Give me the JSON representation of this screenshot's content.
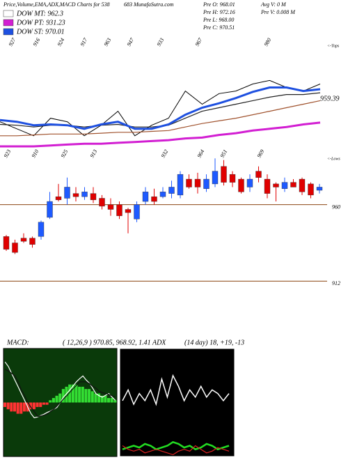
{
  "header": {
    "title": "Price,Volume,EMA,ADX,MACD Charts for 538",
    "site": "683 MunafaSutra.com",
    "info": [
      [
        "Pre O: 968.01",
        "Avg V: 0 M"
      ],
      [
        "Pre H: 972.16",
        "Pre V: 0.008 M"
      ],
      [
        "Pre L: 968.00"
      ],
      [
        "Pre C: 970.51"
      ]
    ]
  },
  "chart_data": [
    {
      "type": "line",
      "categories": [
        null,
        null,
        null,
        null,
        null,
        null,
        null,
        null,
        null,
        null,
        null,
        null,
        null,
        null,
        null,
        null,
        null,
        null,
        null,
        null
      ],
      "ylim": [
        901,
        1024
      ],
      "top_marker": "<-Tops",
      "top_labels": [
        "927",
        "916",
        "924",
        "917",
        "963",
        "947",
        "933",
        "967",
        "980"
      ],
      "low_marker": "<-Lows",
      "low_labels": [
        "923",
        "910",
        "925",
        "913",
        "932",
        "964",
        "951",
        "969"
      ],
      "annotation": "959.39",
      "series": [
        {
          "color": "#000000",
          "values": [
            933,
            925,
            917,
            937,
            933,
            917,
            929,
            945,
            917,
            929,
            937,
            968,
            953,
            965,
            968,
            976,
            980,
            972,
            968,
            976
          ]
        },
        {
          "color": "#a0522d",
          "values": [
            917,
            917,
            918,
            919,
            919,
            919,
            920,
            921,
            921,
            922,
            923,
            927,
            931,
            934,
            937,
            941,
            945,
            949,
            953,
            957
          ]
        },
        {
          "name": "DOW MT: 962.3",
          "color": "#222222",
          "values": [
            930,
            929,
            927,
            929,
            929,
            927,
            929,
            930,
            927,
            927,
            929,
            937,
            945,
            949,
            953,
            957,
            961,
            964,
            964,
            966
          ]
        },
        {
          "name": "DOW PT: 931.23",
          "color": "#d21ed2",
          "values": [
            905,
            905,
            905,
            906,
            907,
            908,
            908,
            909,
            910,
            911,
            912,
            914,
            915,
            918,
            920,
            923,
            925,
            927,
            930,
            932
          ]
        },
        {
          "name": "DOW ST: 970.01",
          "color": "#1e50e0",
          "values": [
            935,
            933,
            929,
            930,
            929,
            925,
            930,
            933,
            925,
            925,
            930,
            941,
            949,
            954,
            960,
            967,
            972,
            972,
            968,
            970
          ]
        }
      ]
    },
    {
      "type": "candlestick",
      "categories": [
        null,
        null,
        null,
        null,
        null,
        null,
        null,
        null,
        null,
        null,
        null,
        null,
        null,
        null,
        null,
        null,
        null,
        null,
        null,
        null,
        null,
        null,
        null,
        null,
        null,
        null,
        null,
        null,
        null,
        null,
        null,
        null,
        null,
        null,
        null,
        null,
        null
      ],
      "open": [
        940,
        936,
        939,
        939,
        940,
        952,
        965,
        964,
        967,
        965,
        967,
        964,
        960,
        960,
        957,
        951,
        962,
        965,
        965,
        967,
        966,
        976,
        976,
        970,
        973,
        984,
        979,
        976,
        971,
        981,
        976,
        973,
        970,
        974,
        976,
        973,
        969
      ],
      "close": [
        932,
        930,
        937,
        935,
        949,
        962,
        963,
        971,
        965,
        968,
        963,
        959,
        957,
        953,
        955,
        960,
        968,
        962,
        968,
        971,
        979,
        971,
        971,
        976,
        981,
        974,
        974,
        968,
        976,
        977,
        967,
        971,
        974,
        971,
        968,
        966,
        971
      ],
      "high": [
        941,
        938,
        942,
        940,
        950,
        968,
        973,
        977,
        971,
        971,
        971,
        966,
        964,
        962,
        958,
        962,
        971,
        970,
        971,
        975,
        981,
        979,
        980,
        979,
        989,
        988,
        981,
        977,
        979,
        984,
        979,
        974,
        977,
        976,
        977,
        974,
        973
      ],
      "low": [
        931,
        929,
        936,
        933,
        938,
        951,
        962,
        960,
        962,
        963,
        961,
        957,
        953,
        951,
        942,
        949,
        960,
        960,
        964,
        964,
        964,
        970,
        967,
        968,
        971,
        972,
        971,
        967,
        968,
        974,
        964,
        962,
        968,
        971,
        966,
        964,
        967
      ],
      "up_color": "#1e5aff",
      "down_color": "#e00000",
      "line_color": "#8b4513",
      "ylim": [
        896,
        990
      ],
      "yticks": [
        960,
        912
      ]
    },
    {
      "type": "macd",
      "title": "MACD:",
      "subtitle": "( 12,26,9 ) 970.85, 968.92, 1.41 ADX",
      "ylim": [
        -12,
        12
      ],
      "categories": [
        null,
        null,
        null,
        null,
        null,
        null,
        null,
        null,
        null,
        null,
        null,
        null,
        null,
        null,
        null,
        null,
        null,
        null,
        null,
        null,
        null,
        null,
        null,
        null,
        null,
        null,
        null,
        null,
        null,
        null,
        null,
        null,
        null,
        null,
        null
      ],
      "histogram": [
        -1,
        -1.5,
        -2,
        -2,
        -2.5,
        -2.5,
        -2,
        -2,
        -1.5,
        -1.5,
        -1,
        -1,
        -0.5,
        -0.5,
        0.5,
        1,
        1.5,
        2,
        3,
        3.5,
        4,
        4,
        4,
        3.5,
        3.5,
        3,
        3,
        2.5,
        2,
        2,
        1.5,
        1.5,
        1,
        1,
        0.5
      ],
      "pos_color": "#33dd33",
      "neg_color": "#ff3333",
      "background": "#0a3a0a",
      "series": [
        {
          "color": "#ffffff",
          "values": [
            9,
            8,
            6.5,
            5,
            3.5,
            2,
            0.5,
            -1,
            -2.5,
            -3.4,
            -3.2,
            -2.9,
            -2.6,
            -2.2,
            -1.9,
            -1.5,
            -1.1,
            0,
            1.2,
            2,
            2.8,
            3.7,
            4.6,
            5.3,
            5.9,
            5,
            4.3,
            3.2,
            2,
            1.5,
            1.2,
            1.6,
            2,
            1.2,
            0.5
          ]
        },
        {
          "color": "#111111",
          "values": [
            7.4,
            7,
            6.5,
            5.9,
            4.5,
            2.8,
            1.5,
            0,
            -1.1,
            -2,
            -3.1,
            -3,
            -2.8,
            -2.6,
            -2,
            -1.5,
            -0.8,
            0,
            0.8,
            1.5,
            2.3,
            3.1,
            3.8,
            4.6,
            4.6,
            4.6,
            4.2,
            3.6,
            3.2,
            2.5,
            2.2,
            2,
            1.8,
            1.5,
            1.2
          ]
        }
      ]
    },
    {
      "type": "line",
      "subtitle": "(14 day) 18, +19, -13",
      "ylim": [
        0,
        60
      ],
      "background": "#000000",
      "categories": [
        null,
        null,
        null,
        null,
        null,
        null,
        null,
        null,
        null,
        null,
        null,
        null,
        null,
        null,
        null,
        null,
        null,
        null,
        null,
        null
      ],
      "series": [
        {
          "color": "#ffffff",
          "values": [
            31,
            37,
            29,
            35,
            31,
            37,
            29,
            43,
            33,
            45,
            39,
            31,
            37,
            33,
            39,
            33,
            37,
            35,
            31,
            35
          ]
        },
        {
          "color": "#22dd22",
          "values": [
            4,
            5,
            6,
            5,
            7,
            6,
            4,
            5,
            6,
            8,
            7,
            5,
            6,
            4,
            5,
            7,
            6,
            4,
            5,
            6
          ]
        },
        {
          "color": "#dd2222",
          "values": [
            6,
            4,
            3,
            4,
            2,
            3,
            4,
            3,
            2,
            1,
            3,
            4,
            3,
            6,
            4,
            2,
            3,
            5,
            4,
            3
          ]
        }
      ]
    }
  ]
}
